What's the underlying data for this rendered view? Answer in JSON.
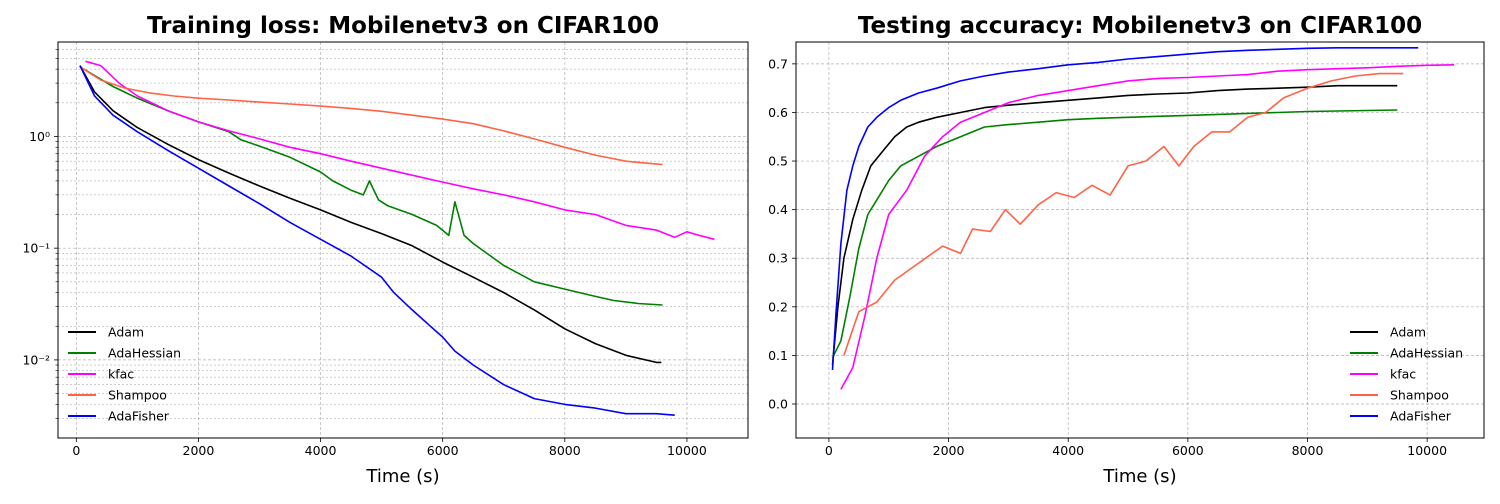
{
  "chart_data": [
    {
      "type": "line",
      "title": "Training loss: Mobilenetv3 on CIFAR100",
      "xlabel": "Time (s)",
      "ylabel": "",
      "yscale": "log",
      "xlim": [
        -300,
        11000
      ],
      "ylim": [
        0.002,
        7
      ],
      "xticks": [
        0,
        2000,
        4000,
        6000,
        8000,
        10000
      ],
      "yticks": [
        0.01,
        0.1,
        1
      ],
      "ytick_labels": [
        "10⁻²",
        "10⁻¹",
        "10⁰"
      ],
      "grid": true,
      "legend_position": "lower-left",
      "series": [
        {
          "name": "Adam",
          "color": "#000000",
          "x": [
            60,
            300,
            600,
            1000,
            1500,
            2000,
            2500,
            3000,
            3500,
            4000,
            4500,
            5000,
            5500,
            6000,
            6500,
            7000,
            7500,
            8000,
            8500,
            9000,
            9500,
            9580
          ],
          "y": [
            4.3,
            2.5,
            1.7,
            1.2,
            0.85,
            0.62,
            0.47,
            0.36,
            0.28,
            0.22,
            0.17,
            0.135,
            0.105,
            0.075,
            0.055,
            0.04,
            0.028,
            0.019,
            0.014,
            0.011,
            0.0095,
            0.0095
          ]
        },
        {
          "name": "AdaHessian",
          "color": "#008000",
          "x": [
            60,
            300,
            600,
            1000,
            1500,
            2000,
            2500,
            2700,
            3000,
            3500,
            4000,
            4200,
            4500,
            4700,
            4800,
            4950,
            5100,
            5500,
            5900,
            6100,
            6200,
            6350,
            6500,
            7000,
            7500,
            8000,
            8500,
            8800,
            9200,
            9600
          ],
          "y": [
            4.2,
            3.5,
            2.8,
            2.2,
            1.7,
            1.35,
            1.1,
            0.93,
            0.82,
            0.65,
            0.48,
            0.4,
            0.33,
            0.3,
            0.4,
            0.27,
            0.24,
            0.2,
            0.16,
            0.13,
            0.26,
            0.13,
            0.11,
            0.07,
            0.05,
            0.043,
            0.037,
            0.034,
            0.032,
            0.031
          ]
        },
        {
          "name": "kfac",
          "color": "#ff00ff",
          "x": [
            150,
            400,
            700,
            1000,
            1500,
            2000,
            2500,
            3000,
            3500,
            4000,
            4500,
            5000,
            5500,
            6000,
            6500,
            7000,
            7500,
            8000,
            8500,
            9000,
            9500,
            9800,
            10000,
            10200,
            10450
          ],
          "y": [
            4.7,
            4.3,
            3.0,
            2.3,
            1.7,
            1.35,
            1.12,
            0.95,
            0.8,
            0.7,
            0.6,
            0.52,
            0.45,
            0.39,
            0.34,
            0.3,
            0.26,
            0.22,
            0.2,
            0.16,
            0.145,
            0.125,
            0.14,
            0.13,
            0.12
          ]
        },
        {
          "name": "Shampoo",
          "color": "#ff6347",
          "x": [
            60,
            400,
            800,
            1200,
            1600,
            2000,
            2500,
            3000,
            3500,
            4000,
            4500,
            5000,
            5500,
            6000,
            6500,
            7000,
            7500,
            8000,
            8500,
            9000,
            9600
          ],
          "y": [
            4.2,
            3.2,
            2.7,
            2.45,
            2.3,
            2.2,
            2.12,
            2.03,
            1.95,
            1.87,
            1.78,
            1.68,
            1.55,
            1.43,
            1.3,
            1.12,
            0.95,
            0.8,
            0.68,
            0.6,
            0.56
          ]
        },
        {
          "name": "AdaFisher",
          "color": "#0000ff",
          "x": [
            60,
            300,
            600,
            1000,
            1500,
            2000,
            2500,
            3000,
            3500,
            4000,
            4500,
            5000,
            5200,
            5500,
            5800,
            6000,
            6200,
            6500,
            7000,
            7500,
            8000,
            8500,
            9000,
            9500,
            9800
          ],
          "y": [
            4.3,
            2.3,
            1.55,
            1.1,
            0.75,
            0.52,
            0.36,
            0.25,
            0.17,
            0.12,
            0.085,
            0.055,
            0.04,
            0.028,
            0.02,
            0.016,
            0.012,
            0.009,
            0.006,
            0.0045,
            0.004,
            0.0037,
            0.0033,
            0.0033,
            0.0032
          ]
        }
      ]
    },
    {
      "type": "line",
      "title": "Testing accuracy: Mobilenetv3 on CIFAR100",
      "xlabel": "Time (s)",
      "ylabel": "",
      "xlim": [
        -550,
        10950
      ],
      "ylim": [
        -0.07,
        0.745
      ],
      "xticks": [
        0,
        2000,
        4000,
        6000,
        8000,
        10000
      ],
      "yticks": [
        0.0,
        0.1,
        0.2,
        0.3,
        0.4,
        0.5,
        0.6,
        0.7
      ],
      "ytick_labels": [
        "0.0",
        "0.1",
        "0.2",
        "0.3",
        "0.4",
        "0.5",
        "0.6",
        "0.7"
      ],
      "grid": true,
      "legend_position": "lower-right",
      "series": [
        {
          "name": "Adam",
          "color": "#000000",
          "x": [
            60,
            150,
            250,
            400,
            550,
            700,
            900,
            1100,
            1300,
            1500,
            1800,
            2200,
            2600,
            3000,
            3500,
            4000,
            4500,
            5000,
            5500,
            6000,
            6500,
            7000,
            7500,
            8000,
            8500,
            9000,
            9500
          ],
          "y": [
            0.08,
            0.2,
            0.3,
            0.38,
            0.44,
            0.49,
            0.52,
            0.55,
            0.57,
            0.58,
            0.59,
            0.6,
            0.61,
            0.615,
            0.62,
            0.625,
            0.63,
            0.635,
            0.638,
            0.64,
            0.645,
            0.648,
            0.65,
            0.652,
            0.655,
            0.655,
            0.655
          ]
        },
        {
          "name": "AdaHessian",
          "color": "#008000",
          "x": [
            60,
            200,
            350,
            500,
            650,
            800,
            1000,
            1200,
            1500,
            1800,
            2200,
            2600,
            3000,
            3500,
            4000,
            4500,
            5000,
            5500,
            6000,
            6500,
            7000,
            7500,
            8000,
            8500,
            9000,
            9500
          ],
          "y": [
            0.095,
            0.13,
            0.22,
            0.32,
            0.39,
            0.42,
            0.46,
            0.49,
            0.51,
            0.53,
            0.55,
            0.57,
            0.575,
            0.58,
            0.585,
            0.588,
            0.59,
            0.592,
            0.594,
            0.596,
            0.598,
            0.6,
            0.602,
            0.603,
            0.604,
            0.605
          ]
        },
        {
          "name": "kfac",
          "color": "#ff00ff",
          "x": [
            200,
            400,
            600,
            800,
            1000,
            1300,
            1600,
            1900,
            2200,
            2600,
            3000,
            3500,
            4000,
            4500,
            5000,
            5500,
            6000,
            6500,
            7000,
            7500,
            8000,
            8500,
            9000,
            9500,
            10000,
            10450
          ],
          "y": [
            0.03,
            0.075,
            0.18,
            0.3,
            0.39,
            0.44,
            0.51,
            0.55,
            0.58,
            0.6,
            0.62,
            0.635,
            0.645,
            0.655,
            0.665,
            0.67,
            0.672,
            0.675,
            0.678,
            0.685,
            0.688,
            0.69,
            0.692,
            0.695,
            0.697,
            0.698
          ]
        },
        {
          "name": "Shampoo",
          "color": "#ff6347",
          "x": [
            250,
            500,
            800,
            1100,
            1500,
            1900,
            2200,
            2400,
            2700,
            2950,
            3200,
            3500,
            3800,
            4100,
            4400,
            4700,
            5000,
            5300,
            5600,
            5850,
            6100,
            6400,
            6700,
            7000,
            7300,
            7600,
            8000,
            8400,
            8800,
            9200,
            9600
          ],
          "y": [
            0.1,
            0.19,
            0.21,
            0.255,
            0.29,
            0.325,
            0.31,
            0.36,
            0.355,
            0.4,
            0.37,
            0.41,
            0.435,
            0.425,
            0.45,
            0.43,
            0.49,
            0.5,
            0.53,
            0.49,
            0.53,
            0.56,
            0.56,
            0.59,
            0.6,
            0.63,
            0.65,
            0.665,
            0.675,
            0.68,
            0.68
          ]
        },
        {
          "name": "AdaFisher",
          "color": "#0000ff",
          "x": [
            60,
            120,
            200,
            300,
            400,
            500,
            650,
            800,
            1000,
            1200,
            1500,
            1800,
            2200,
            2600,
            3000,
            3500,
            4000,
            4500,
            5000,
            5500,
            6000,
            6500,
            7000,
            7500,
            8000,
            8500,
            9000,
            9500,
            9850
          ],
          "y": [
            0.07,
            0.19,
            0.33,
            0.44,
            0.49,
            0.53,
            0.57,
            0.59,
            0.61,
            0.625,
            0.64,
            0.65,
            0.665,
            0.675,
            0.683,
            0.69,
            0.698,
            0.703,
            0.71,
            0.715,
            0.72,
            0.725,
            0.728,
            0.73,
            0.732,
            0.733,
            0.733,
            0.733,
            0.733
          ]
        }
      ]
    }
  ]
}
